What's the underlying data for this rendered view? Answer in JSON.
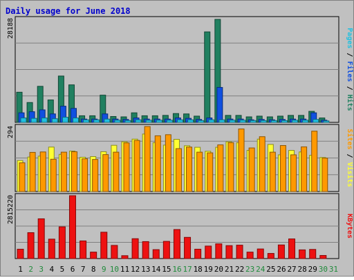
{
  "chart_data": {
    "type": "bar",
    "title": "Daily usage for June 2018",
    "categories": [
      "1",
      "2",
      "3",
      "4",
      "5",
      "6",
      "7",
      "8",
      "9",
      "10",
      "11",
      "12",
      "13",
      "14",
      "15",
      "16",
      "17",
      "18",
      "19",
      "20",
      "21",
      "22",
      "23",
      "24",
      "25",
      "26",
      "27",
      "28",
      "29",
      "30",
      "31"
    ],
    "weekend_days": [
      "2",
      "3",
      "9",
      "10",
      "16",
      "17",
      "23",
      "24",
      "30",
      "31"
    ],
    "panels": [
      {
        "id": "hits-files-pages",
        "max_label": "28188",
        "ymax": 28188,
        "right_labels": [
          "Pages",
          "Files",
          "Hits"
        ],
        "series": [
          {
            "name": "Hits",
            "color": "#208060",
            "values": [
              8200,
              5400,
              9800,
              6100,
              12600,
              10200,
              1800,
              1800,
              7400,
              1600,
              1500,
              2600,
              1800,
              1800,
              1900,
              2400,
              2300,
              1700,
              24600,
              28000,
              1900,
              1900,
              1500,
              1700,
              1500,
              1700,
              1900,
              1900,
              3000,
              1200,
              0
            ]
          },
          {
            "name": "Files",
            "color": "#1050e0",
            "values": [
              2600,
              2900,
              3400,
              2300,
              4400,
              3800,
              900,
              900,
              2300,
              900,
              800,
              1200,
              900,
              900,
              900,
              1200,
              1100,
              800,
              1200,
              9500,
              900,
              900,
              700,
              800,
              700,
              800,
              900,
              900,
              2600,
              600,
              0
            ]
          },
          {
            "name": "Pages",
            "color": "#20c0e0",
            "values": [
              1200,
              1100,
              1200,
              1000,
              1400,
              1200,
              700,
              700,
              900,
              600,
              500,
              700,
              600,
              600,
              600,
              700,
              700,
              500,
              700,
              700,
              600,
              600,
              500,
              500,
              500,
              500,
              600,
              600,
              800,
              400,
              0
            ]
          }
        ]
      },
      {
        "id": "visits-sites",
        "max_label": "294",
        "ymax": 294,
        "right_labels": [
          "Sites",
          "Visits"
        ],
        "series": [
          {
            "name": "Visits",
            "color": "#ffff33",
            "values": [
              140,
              156,
              160,
              201,
              168,
              183,
              155,
              158,
              180,
              209,
              225,
              237,
              260,
              221,
              210,
              236,
              207,
              200,
              182,
              200,
              225,
              221,
              186,
              237,
              213,
              166,
              186,
              179,
              164,
              154,
              0
            ]
          },
          {
            "name": "Sites",
            "color": "#ff9900",
            "values": [
              130,
              177,
              179,
              146,
              178,
              180,
              148,
              145,
              167,
              178,
              220,
              231,
              294,
              252,
              257,
              194,
              201,
              178,
              175,
              211,
              221,
              283,
              197,
              248,
              178,
              208,
              166,
              202,
              273,
              151,
              0
            ]
          }
        ]
      },
      {
        "id": "kbytes",
        "max_label": "2815220",
        "ymax": 2815220,
        "right_labels": [
          "KBytes"
        ],
        "series": [
          {
            "name": "KBytes",
            "color": "#ee1111",
            "values": [
              420000,
              1160000,
              1780000,
              870000,
              1420000,
              2815220,
              790000,
              290000,
              1180000,
              590000,
              130000,
              890000,
              760000,
              400000,
              770000,
              1300000,
              950000,
              420000,
              560000,
              660000,
              580000,
              600000,
              290000,
              430000,
              230000,
              610000,
              880000,
              390000,
              410000,
              140000,
              0
            ]
          }
        ]
      }
    ],
    "grid": true
  }
}
